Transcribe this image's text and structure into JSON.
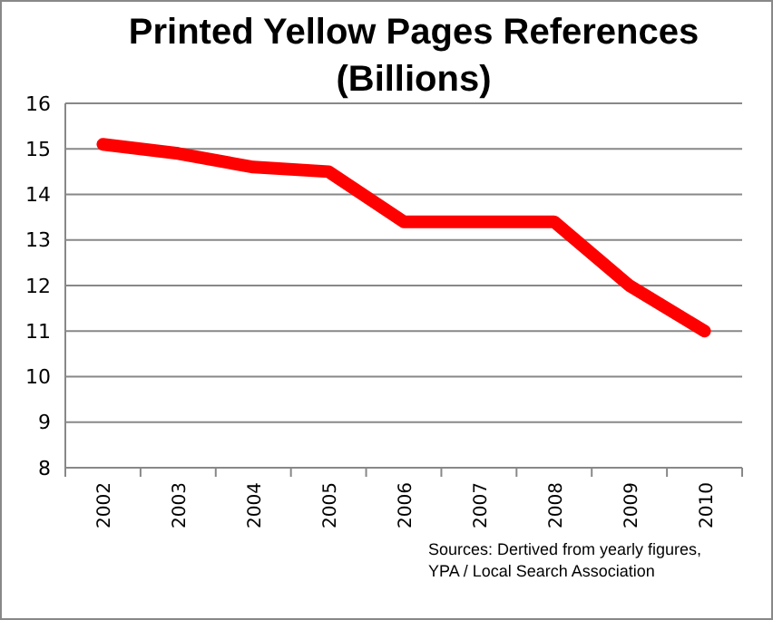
{
  "chart_data": {
    "type": "line",
    "title": "Printed Yellow Pages References (Billions)",
    "categories": [
      "2002",
      "2003",
      "2004",
      "2005",
      "2006",
      "2007",
      "2008",
      "2009",
      "2010"
    ],
    "series": [
      {
        "color": "#ff0000",
        "values": [
          15.1,
          14.9,
          14.6,
          14.5,
          13.4,
          13.4,
          13.4,
          12.0,
          11.0
        ]
      }
    ],
    "ylim": [
      8,
      16
    ],
    "yticks": [
      8,
      9,
      10,
      11,
      12,
      13,
      14,
      15,
      16
    ],
    "grid": "y",
    "marker": "none",
    "line_style": "solid",
    "annotations": [
      "Sources: Dertived from yearly figures, YPA / Local Search Association"
    ]
  }
}
